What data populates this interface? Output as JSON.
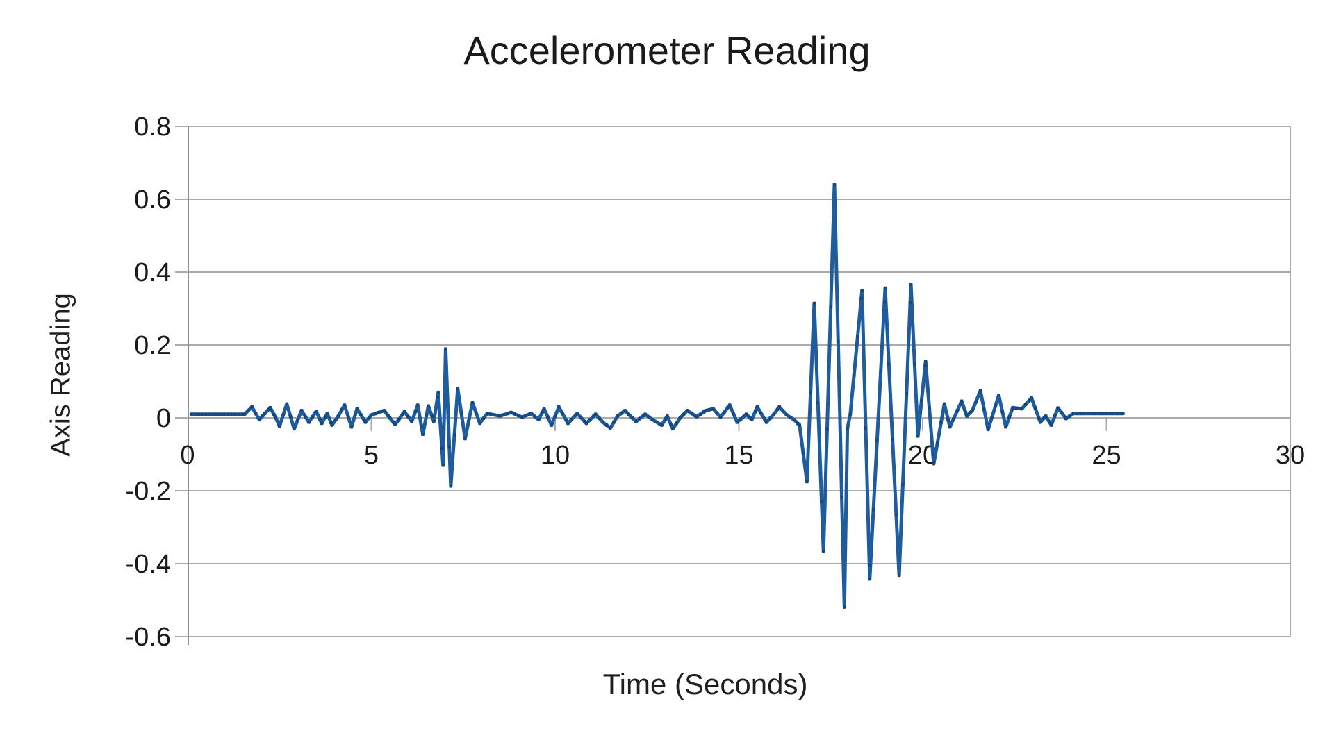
{
  "page": {
    "background": "#ffffff"
  },
  "chart_data": {
    "type": "line",
    "title": "Accelerometer Reading",
    "xlabel": "Time (Seconds)",
    "ylabel": "Axis Reading",
    "xlim": [
      0,
      30
    ],
    "ylim": [
      -0.6,
      0.8
    ],
    "x_ticks": [
      0,
      5,
      10,
      15,
      20,
      25,
      30
    ],
    "x_tick_labels": [
      "0",
      "5",
      "10",
      "15",
      "20",
      "25",
      "30"
    ],
    "y_ticks": [
      0.8,
      0.6,
      0.4,
      0.2,
      0,
      -0.2,
      -0.4,
      -0.6
    ],
    "y_tick_labels": [
      "0.8",
      "0.6",
      "0.4",
      "0.2",
      "0",
      "-0.2",
      "-0.4",
      "-0.6"
    ],
    "grid": "horizontal-only",
    "legend": "none",
    "line_color": "#1e5c9e",
    "marker_color": "#16487e",
    "gridline_color": "#ababab",
    "axis_line_color": "#8f8f8f",
    "text_color": "#1a1a1a",
    "sample_interval_s": 0.1,
    "series": [
      {
        "name": "Axis Reading",
        "points": [
          [
            0.1,
            0.01
          ],
          [
            1.55,
            0.01
          ],
          [
            1.75,
            0.03
          ],
          [
            1.95,
            -0.005
          ],
          [
            2.1,
            0.012
          ],
          [
            2.25,
            0.028
          ],
          [
            2.4,
            0
          ],
          [
            2.5,
            -0.023
          ],
          [
            2.7,
            0.038
          ],
          [
            2.9,
            -0.03
          ],
          [
            3.1,
            0.02
          ],
          [
            3.3,
            -0.012
          ],
          [
            3.5,
            0.018
          ],
          [
            3.65,
            -0.015
          ],
          [
            3.8,
            0.012
          ],
          [
            3.93,
            -0.02
          ],
          [
            4.1,
            0.005
          ],
          [
            4.27,
            0.035
          ],
          [
            4.46,
            -0.025
          ],
          [
            4.61,
            0.025
          ],
          [
            4.84,
            -0.012
          ],
          [
            5.0,
            0.008
          ],
          [
            5.35,
            0.02
          ],
          [
            5.5,
            0
          ],
          [
            5.65,
            -0.018
          ],
          [
            5.9,
            0.017
          ],
          [
            6.1,
            -0.01
          ],
          [
            6.26,
            0.035
          ],
          [
            6.4,
            -0.045
          ],
          [
            6.55,
            0.033
          ],
          [
            6.7,
            -0.01
          ],
          [
            6.82,
            0.07
          ],
          [
            6.95,
            -0.13
          ],
          [
            7.02,
            0.189
          ],
          [
            7.16,
            -0.187
          ],
          [
            7.35,
            0.08
          ],
          [
            7.55,
            -0.057
          ],
          [
            7.75,
            0.042
          ],
          [
            7.95,
            -0.015
          ],
          [
            8.15,
            0.012
          ],
          [
            8.5,
            0.005
          ],
          [
            8.8,
            0.015
          ],
          [
            9.1,
            0.002
          ],
          [
            9.35,
            0.012
          ],
          [
            9.55,
            -0.005
          ],
          [
            9.7,
            0.025
          ],
          [
            9.9,
            -0.02
          ],
          [
            10.1,
            0.03
          ],
          [
            10.35,
            -0.015
          ],
          [
            10.6,
            0.012
          ],
          [
            10.85,
            -0.015
          ],
          [
            11.1,
            0.01
          ],
          [
            11.3,
            -0.012
          ],
          [
            11.5,
            -0.028
          ],
          [
            11.7,
            0.005
          ],
          [
            11.9,
            0.02
          ],
          [
            12.2,
            -0.01
          ],
          [
            12.45,
            0.01
          ],
          [
            12.65,
            -0.005
          ],
          [
            12.9,
            -0.02
          ],
          [
            13.05,
            0.005
          ],
          [
            13.2,
            -0.03
          ],
          [
            13.4,
            0
          ],
          [
            13.6,
            0.02
          ],
          [
            13.85,
            0.003
          ],
          [
            14.1,
            0.02
          ],
          [
            14.3,
            0.025
          ],
          [
            14.5,
            0.002
          ],
          [
            14.75,
            0.035
          ],
          [
            14.95,
            -0.012
          ],
          [
            15.2,
            0.01
          ],
          [
            15.35,
            -0.005
          ],
          [
            15.5,
            0.03
          ],
          [
            15.75,
            -0.012
          ],
          [
            15.95,
            0.01
          ],
          [
            16.1,
            0.03
          ],
          [
            16.3,
            0.008
          ],
          [
            16.5,
            -0.005
          ],
          [
            16.65,
            -0.02
          ],
          [
            16.85,
            -0.175
          ],
          [
            17.05,
            0.314
          ],
          [
            17.3,
            -0.366
          ],
          [
            17.6,
            0.64
          ],
          [
            17.87,
            -0.519
          ],
          [
            17.95,
            -0.03
          ],
          [
            18.03,
            0.01
          ],
          [
            18.35,
            0.35
          ],
          [
            18.56,
            -0.442
          ],
          [
            18.98,
            0.356
          ],
          [
            19.36,
            -0.432
          ],
          [
            19.68,
            0.366
          ],
          [
            19.87,
            -0.05
          ],
          [
            20.08,
            0.155
          ],
          [
            20.3,
            -0.126
          ],
          [
            20.59,
            0.038
          ],
          [
            20.74,
            -0.025
          ],
          [
            21.06,
            0.046
          ],
          [
            21.2,
            0.005
          ],
          [
            21.35,
            0.02
          ],
          [
            21.57,
            0.074
          ],
          [
            21.78,
            -0.032
          ],
          [
            22.07,
            0.062
          ],
          [
            22.26,
            -0.025
          ],
          [
            22.45,
            0.028
          ],
          [
            22.7,
            0.025
          ],
          [
            22.96,
            0.055
          ],
          [
            23.2,
            -0.012
          ],
          [
            23.35,
            0.005
          ],
          [
            23.5,
            -0.02
          ],
          [
            23.68,
            0.027
          ],
          [
            23.9,
            -0.002
          ],
          [
            24.1,
            0.012
          ],
          [
            25.45,
            0.012
          ]
        ]
      }
    ]
  }
}
